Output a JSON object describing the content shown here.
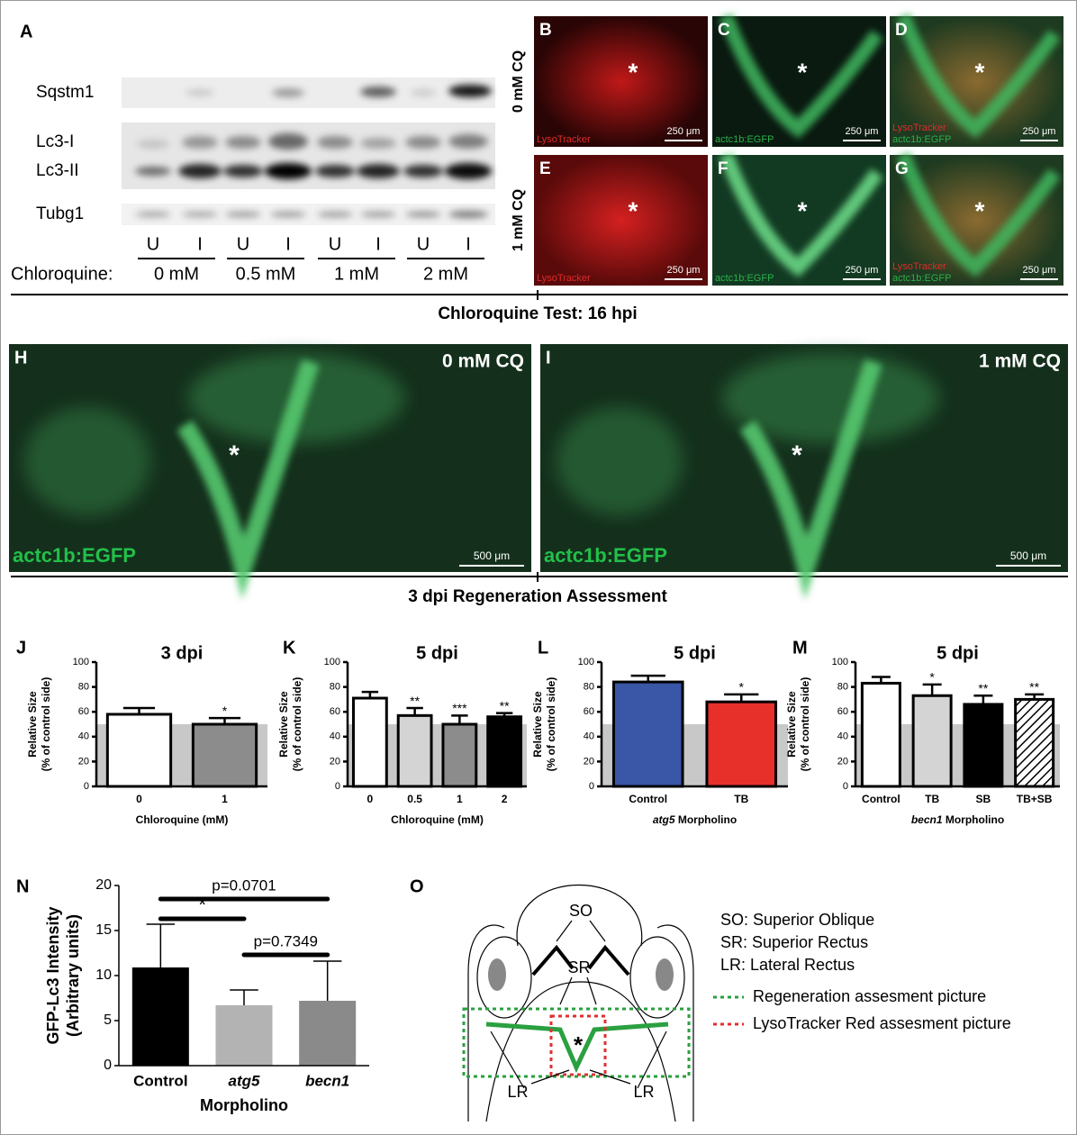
{
  "panel_a": {
    "letter": "A",
    "proteins": [
      "Sqstm1",
      "Lc3-I",
      "Lc3-II",
      "Tubg1"
    ],
    "lanes": [
      "U",
      "I",
      "U",
      "I",
      "U",
      "I",
      "U",
      "I"
    ],
    "treatment_label": "Chloroquine:",
    "doses": [
      "0 mM",
      "0.5 mM",
      "1 mM",
      "2 mM"
    ]
  },
  "fluorescence": {
    "row_labels": [
      "0 mM CQ",
      "1 mM CQ"
    ],
    "panels": [
      {
        "letter": "B",
        "channels": [
          "LysoTracker"
        ],
        "scale": "250 μm",
        "marker": "*"
      },
      {
        "letter": "C",
        "channels": [
          "actc1b:EGFP"
        ],
        "scale": "250 μm",
        "marker": "*"
      },
      {
        "letter": "D",
        "channels": [
          "LysoTracker",
          "actc1b:EGFP"
        ],
        "scale": "250 μm",
        "marker": "*"
      },
      {
        "letter": "E",
        "channels": [
          "LysoTracker"
        ],
        "scale": "250 μm",
        "marker": "*"
      },
      {
        "letter": "F",
        "channels": [
          "actc1b:EGFP"
        ],
        "scale": "250 μm",
        "marker": "*"
      },
      {
        "letter": "G",
        "channels": [
          "LysoTracker",
          "actc1b:EGFP"
        ],
        "scale": "250 μm",
        "marker": "*"
      }
    ],
    "caption": "Chloroquine Test: 16 hpi"
  },
  "whole_mount": {
    "panels": [
      {
        "letter": "H",
        "condition": "0 mM CQ",
        "channel": "actc1b:EGFP",
        "scale": "500 μm",
        "marker": "*"
      },
      {
        "letter": "I",
        "condition": "1 mM CQ",
        "channel": "actc1b:EGFP",
        "scale": "500 μm",
        "marker": "*"
      }
    ],
    "caption": "3 dpi Regeneration Assessment"
  },
  "chart_data": [
    {
      "type": "bar",
      "letter": "J",
      "title": "3 dpi",
      "ylabel": [
        "Relative Size",
        "(% of control side)"
      ],
      "xlabel": "Chloroquine (mM)",
      "categories": [
        "0",
        "1"
      ],
      "values": [
        58,
        50
      ],
      "errors": [
        5,
        5
      ],
      "colors": [
        "#ffffff",
        "#8c8c8c"
      ],
      "hatched": [
        false,
        false
      ],
      "significance": [
        null,
        "*"
      ],
      "shade_below": 50,
      "ylim": [
        0,
        100
      ],
      "yticks": [
        0,
        20,
        40,
        60,
        80,
        100
      ]
    },
    {
      "type": "bar",
      "letter": "K",
      "title": "5 dpi",
      "ylabel": [
        "Relative Size",
        "(% of control side)"
      ],
      "xlabel": "Chloroquine (mM)",
      "categories": [
        "0",
        "0.5",
        "1",
        "2"
      ],
      "values": [
        71,
        57,
        50,
        56
      ],
      "errors": [
        5,
        6,
        7,
        3
      ],
      "colors": [
        "#ffffff",
        "#d4d4d4",
        "#8c8c8c",
        "#000000"
      ],
      "hatched": [
        false,
        false,
        false,
        false
      ],
      "significance": [
        null,
        "**",
        "***",
        "**"
      ],
      "shade_below": 50,
      "ylim": [
        0,
        100
      ],
      "yticks": [
        0,
        20,
        40,
        60,
        80,
        100
      ]
    },
    {
      "type": "bar",
      "letter": "L",
      "title": "5 dpi",
      "ylabel": [
        "Relative Size",
        "(% of control side)"
      ],
      "xlabel_gene": "atg5",
      "xlabel": "Morpholino",
      "categories": [
        "Control",
        "TB"
      ],
      "values": [
        84,
        68
      ],
      "errors": [
        5,
        6
      ],
      "colors": [
        "#3a56a6",
        "#e8302a"
      ],
      "hatched": [
        false,
        false
      ],
      "significance": [
        null,
        "*"
      ],
      "shade_below": 50,
      "ylim": [
        0,
        100
      ],
      "yticks": [
        0,
        20,
        40,
        60,
        80,
        100
      ]
    },
    {
      "type": "bar",
      "letter": "M",
      "title": "5 dpi",
      "ylabel": [
        "Relative Size",
        "(% of control side)"
      ],
      "xlabel_gene": "becn1",
      "xlabel": "Morpholino",
      "categories": [
        "Control",
        "TB",
        "SB",
        "TB+SB"
      ],
      "values": [
        83,
        73,
        66,
        70
      ],
      "errors": [
        5,
        9,
        7,
        4
      ],
      "colors": [
        "#ffffff",
        "#d4d4d4",
        "#000000",
        "#ffffff"
      ],
      "hatched": [
        false,
        false,
        false,
        true
      ],
      "significance": [
        null,
        "*",
        "**",
        "**"
      ],
      "shade_below": 50,
      "ylim": [
        0,
        100
      ],
      "yticks": [
        0,
        20,
        40,
        60,
        80,
        100
      ]
    },
    {
      "type": "bar",
      "letter": "N",
      "ylabel": [
        "GFP-Lc3 Intensity",
        "(Arbitrary units)"
      ],
      "xlabel": "Morpholino",
      "categories": [
        "Control",
        "atg5",
        "becn1"
      ],
      "categories_italic": [
        false,
        true,
        true
      ],
      "values": [
        10.9,
        6.7,
        7.2
      ],
      "errors": [
        4.8,
        1.7,
        4.4
      ],
      "colors": [
        "#000000",
        "#b3b3b3",
        "#8a8a8a"
      ],
      "hatched": [
        false,
        false,
        false
      ],
      "brackets": [
        {
          "from": "Control",
          "to": "becn1",
          "label": "p=0.0701"
        },
        {
          "from": "Control",
          "to": "atg5",
          "label": "*"
        },
        {
          "from": "atg5",
          "to": "becn1",
          "label": "p=0.7349"
        }
      ],
      "ylim": [
        0,
        20
      ],
      "yticks": [
        0,
        5,
        10,
        15,
        20
      ]
    }
  ],
  "diagram": {
    "letter": "O",
    "labels": {
      "so": "SO",
      "sr": "SR",
      "lr_left": "LR",
      "lr_right": "LR",
      "marker": "*"
    },
    "legend": [
      {
        "text": "SO: Superior Oblique"
      },
      {
        "text": "SR: Superior Rectus"
      },
      {
        "text": "LR: Lateral Rectus"
      },
      {
        "text": "Regeneration assesment picture",
        "color": "#2aa040"
      },
      {
        "text": "LysoTracker Red assesment picture",
        "color": "#e03030"
      }
    ]
  }
}
